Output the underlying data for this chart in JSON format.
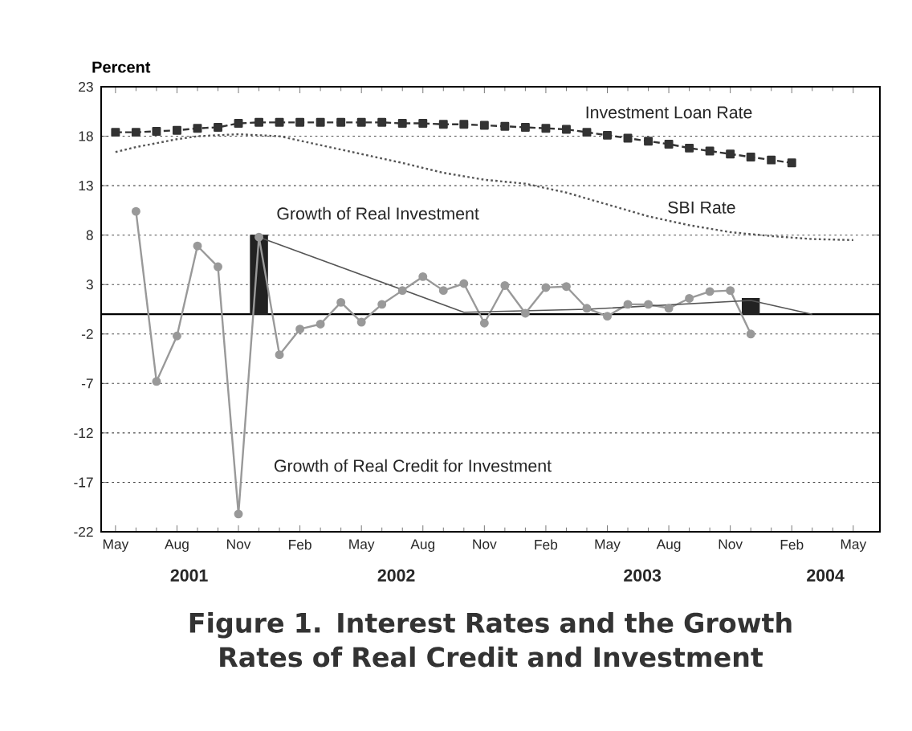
{
  "chart_data": {
    "type": "line",
    "title": "Figure 1. Interest Rates and the Growth Rates of Real Credit and Investment",
    "ylabel": "Percent",
    "xlim": [
      "2001-04-10",
      "2004-06-10"
    ],
    "ylim": [
      -22,
      23
    ],
    "yticks": [
      -22,
      -17,
      -12,
      -7,
      -2,
      3,
      8,
      13,
      18,
      23
    ],
    "xticks": [
      {
        "value": "2001-05",
        "label": "May"
      },
      {
        "value": "2001-08",
        "label": "Aug"
      },
      {
        "value": "2001-11",
        "label": "Nov"
      },
      {
        "value": "2002-02",
        "label": "Feb"
      },
      {
        "value": "2002-05",
        "label": "May"
      },
      {
        "value": "2002-08",
        "label": "Aug"
      },
      {
        "value": "2002-11",
        "label": "Nov"
      },
      {
        "value": "2003-02",
        "label": "Feb"
      },
      {
        "value": "2003-05",
        "label": "May"
      },
      {
        "value": "2003-08",
        "label": "Aug"
      },
      {
        "value": "2003-11",
        "label": "Nov"
      },
      {
        "value": "2004-02",
        "label": "Feb"
      },
      {
        "value": "2004-05",
        "label": "May"
      }
    ],
    "grid": "y",
    "ref_lines": [
      {
        "axis": "y",
        "value": 0,
        "color": "#000000",
        "line_style": "solid"
      }
    ],
    "annotations": [
      "2001",
      "2002",
      "2003",
      "2004"
    ],
    "series": [
      {
        "name": "Investment Loan Rate",
        "color": "#333333",
        "line_style": "dashed",
        "marker": "square",
        "x": [
          "2001-05",
          "2001-06",
          "2001-07",
          "2001-08",
          "2001-09",
          "2001-10",
          "2001-11",
          "2001-12",
          "2002-01",
          "2002-02",
          "2002-03",
          "2002-04",
          "2002-05",
          "2002-06",
          "2002-07",
          "2002-08",
          "2002-09",
          "2002-10",
          "2002-11",
          "2002-12",
          "2003-01",
          "2003-02",
          "2003-03",
          "2003-04",
          "2003-05",
          "2003-06",
          "2003-07",
          "2003-08",
          "2003-09",
          "2003-10",
          "2003-11",
          "2003-12",
          "2004-01",
          "2004-02"
        ],
        "values": [
          18.4,
          18.4,
          18.5,
          18.6,
          18.8,
          18.9,
          19.3,
          19.4,
          19.4,
          19.4,
          19.4,
          19.4,
          19.4,
          19.4,
          19.3,
          19.3,
          19.2,
          19.2,
          19.1,
          19.0,
          18.9,
          18.8,
          18.7,
          18.4,
          18.1,
          17.8,
          17.5,
          17.2,
          16.8,
          16.5,
          16.2,
          15.9,
          15.6,
          15.3
        ]
      },
      {
        "name": "SBI Rate",
        "color": "#555555",
        "line_style": "dotted",
        "marker": "none",
        "x": [
          "2001-05",
          "2001-06",
          "2001-07",
          "2001-08",
          "2001-09",
          "2001-11",
          "2002-01",
          "2002-03",
          "2002-05",
          "2002-07",
          "2002-09",
          "2002-11",
          "2003-01",
          "2003-03",
          "2003-05",
          "2003-07",
          "2003-09",
          "2003-11",
          "2004-01",
          "2004-03",
          "2004-05"
        ],
        "values": [
          16.4,
          16.9,
          17.3,
          17.7,
          18.0,
          18.2,
          18.0,
          17.1,
          16.2,
          15.3,
          14.3,
          13.6,
          13.2,
          12.3,
          11.1,
          9.9,
          9.0,
          8.3,
          7.9,
          7.6,
          7.5
        ]
      },
      {
        "name": "Growth of Real Credit for Investment",
        "color": "#999999",
        "line_style": "solid",
        "marker": "circle",
        "x": [
          "2001-06",
          "2001-07",
          "2001-08",
          "2001-09",
          "2001-10",
          "2001-11",
          "2001-12",
          "2002-01",
          "2002-02",
          "2002-03",
          "2002-04",
          "2002-05",
          "2002-06",
          "2002-07",
          "2002-08",
          "2002-09",
          "2002-10",
          "2002-11",
          "2002-12",
          "2003-01",
          "2003-02",
          "2003-03",
          "2003-04",
          "2003-05",
          "2003-06",
          "2003-07",
          "2003-08",
          "2003-09",
          "2003-10",
          "2003-11",
          "2003-12"
        ],
        "values": [
          10.4,
          -6.8,
          -2.2,
          6.9,
          4.8,
          -20.2,
          7.8,
          -4.1,
          -1.5,
          -1.0,
          1.2,
          -0.8,
          1.0,
          2.4,
          3.8,
          2.4,
          3.1,
          -0.9,
          2.9,
          0.1,
          2.7,
          2.8,
          0.6,
          -0.2,
          1.0,
          1.0,
          0.6,
          1.6,
          2.3,
          2.4,
          -2.0
        ]
      },
      {
        "name": "Growth of Real Investment",
        "type": "bar",
        "color": "#222222",
        "x": [
          "2001-12",
          "2003-12"
        ],
        "values": [
          8.0,
          1.6
        ]
      },
      {
        "color": "#555555",
        "line_style": "solid",
        "marker": "none",
        "x": [
          "2001-12",
          "2002-10",
          "2003-04",
          "2003-12",
          "2004-03"
        ],
        "values": [
          7.8,
          0.2,
          0.5,
          1.4,
          0.0
        ]
      }
    ]
  }
}
